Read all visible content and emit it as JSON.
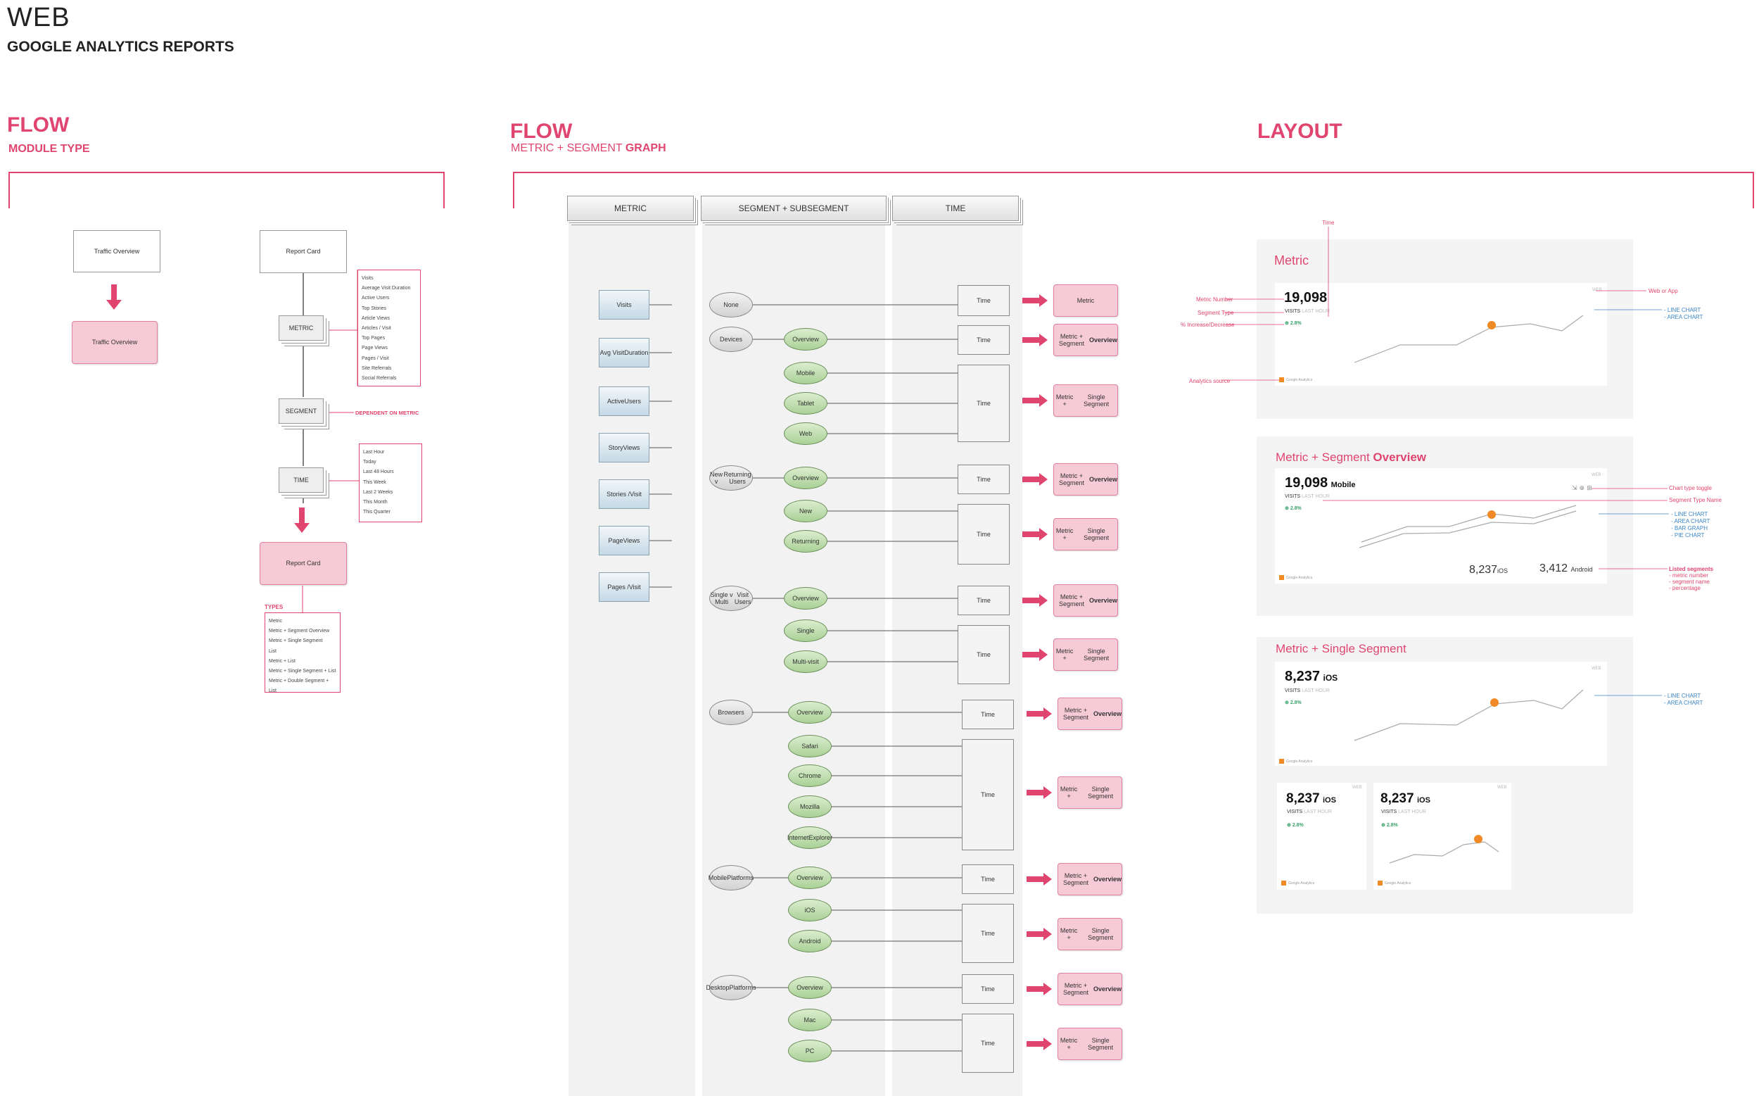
{
  "header": {
    "title": "WEB",
    "subtitle": "GOOGLE ANALYTICS REPORTS"
  },
  "section1": {
    "title": "FLOW",
    "subtitle": "MODULE TYPE",
    "traffic_overview_top": "Traffic Overview",
    "traffic_overview_bottom": "Traffic Overview",
    "report_card_top": "Report Card",
    "metric": "METRIC",
    "segment": "SEGMENT",
    "time": "TIME",
    "dependent_label": "DEPENDENT ON METRIC",
    "report_card_bottom": "Report Card",
    "metric_list": [
      "Visits",
      "Average Visit Duration",
      "Active Users",
      "Top Stories",
      "Article Views",
      "Articles / Visit",
      "Top Pages",
      "Page Views",
      "Pages / Visit",
      "Site Referrals",
      "Social Referrals"
    ],
    "time_list": [
      "Last Hour",
      "Today",
      "Last 48 Hours",
      "This Week",
      "Last 2 Weeks",
      "This Month",
      "This Quarter"
    ],
    "types_label": "TYPES",
    "types_list": [
      "Metric",
      "Metric + Segment Overview",
      "Metric + Single Segment",
      "List",
      "Metric + List",
      "Metric + Single Segment + List",
      "Metric + Double Segment + List"
    ]
  },
  "section2": {
    "title": "FLOW",
    "subtitle_plain": "METRIC + SEGMENT ",
    "subtitle_bold": "GRAPH",
    "col_metric": "METRIC",
    "col_segment": "SEGMENT + SUBSEGMENT",
    "col_time": "TIME",
    "metrics": [
      "Visits",
      "Avg Visit Duration",
      "Active Users",
      "Story Views",
      "Stories / Visit",
      "Page Views",
      "Pages / Visit"
    ],
    "segments": [
      "None",
      "Devices",
      "New v Returning Users",
      "Single v Multi Visit Users",
      "Browsers",
      "Mobile Platforms",
      "Desktop Platforms"
    ],
    "subsegments": [
      "Overview",
      "Mobile",
      "Tablet",
      "Web",
      "Overview",
      "New",
      "Returning",
      "Overview",
      "Single",
      "Multi-visit",
      "Overview",
      "Safari",
      "Chrome",
      "Mozilla",
      "Internet Explorer",
      "Overview",
      "iOS",
      "Android",
      "Overview",
      "Mac",
      "PC"
    ],
    "time_label": "Time",
    "result_metric": "Metric",
    "result_overview_a": "Metric + Segment",
    "result_overview_b": "Overview",
    "result_single_a": "Metric +",
    "result_single_b": "Single Segment"
  },
  "section3": {
    "title": "LAYOUT",
    "card1": {
      "title": "Metric",
      "number": "19,098",
      "sublabel": "VISITS",
      "sublabel_grey": "LAST HOUR",
      "change": "2.8%",
      "web_badge": "WEB",
      "annot_time": "Time",
      "annot_metric_number": "Metric Number",
      "annot_segment_type": "Segment Type",
      "annot_pct": "% Increase/Decrease",
      "annot_source": "Analytics source",
      "annot_web": "Web or App",
      "chart_types": [
        "- LINE CHART",
        "- AREA CHART"
      ]
    },
    "card2": {
      "title_plain": "Metric + Segment ",
      "title_bold": "Overview",
      "number": "19,098",
      "segment": "Mobile",
      "sublabel": "VISITS",
      "sublabel_grey": "LAST HOUR",
      "change": "2.8%",
      "web_badge": "WEB",
      "seg1_value": "8,237",
      "seg1_name": "iOS",
      "seg2_value": "3,412",
      "seg2_name": "Android",
      "annot_toggle": "Chart type toggle",
      "annot_segname": "Segment Type Name",
      "chart_types": [
        "- LINE CHART",
        "- AREA CHART",
        "- BAR GRAPH",
        "- PIE CHART"
      ],
      "listed_title": "Listed segments",
      "listed_items": [
        "- metric number",
        "- segment name",
        "- percentage"
      ]
    },
    "card3": {
      "title": "Metric + Single Segment",
      "number": "8,237",
      "segment": "iOS",
      "sublabel": "VISITS",
      "sublabel_grey": "LAST HOUR",
      "change": "2.8%",
      "web_badge": "WEB",
      "chart_types": [
        "- LINE CHART",
        "- AREA CHART"
      ],
      "small_number": "8,237",
      "small_segment": "iOS"
    },
    "ga_label": "Google Analytics"
  },
  "colors": {
    "accent": "#e0456f",
    "pink_fill": "#f6cad6",
    "green_fill": "#a9d196",
    "blue_annot": "#3a86c8",
    "marker": "#f08a24"
  }
}
